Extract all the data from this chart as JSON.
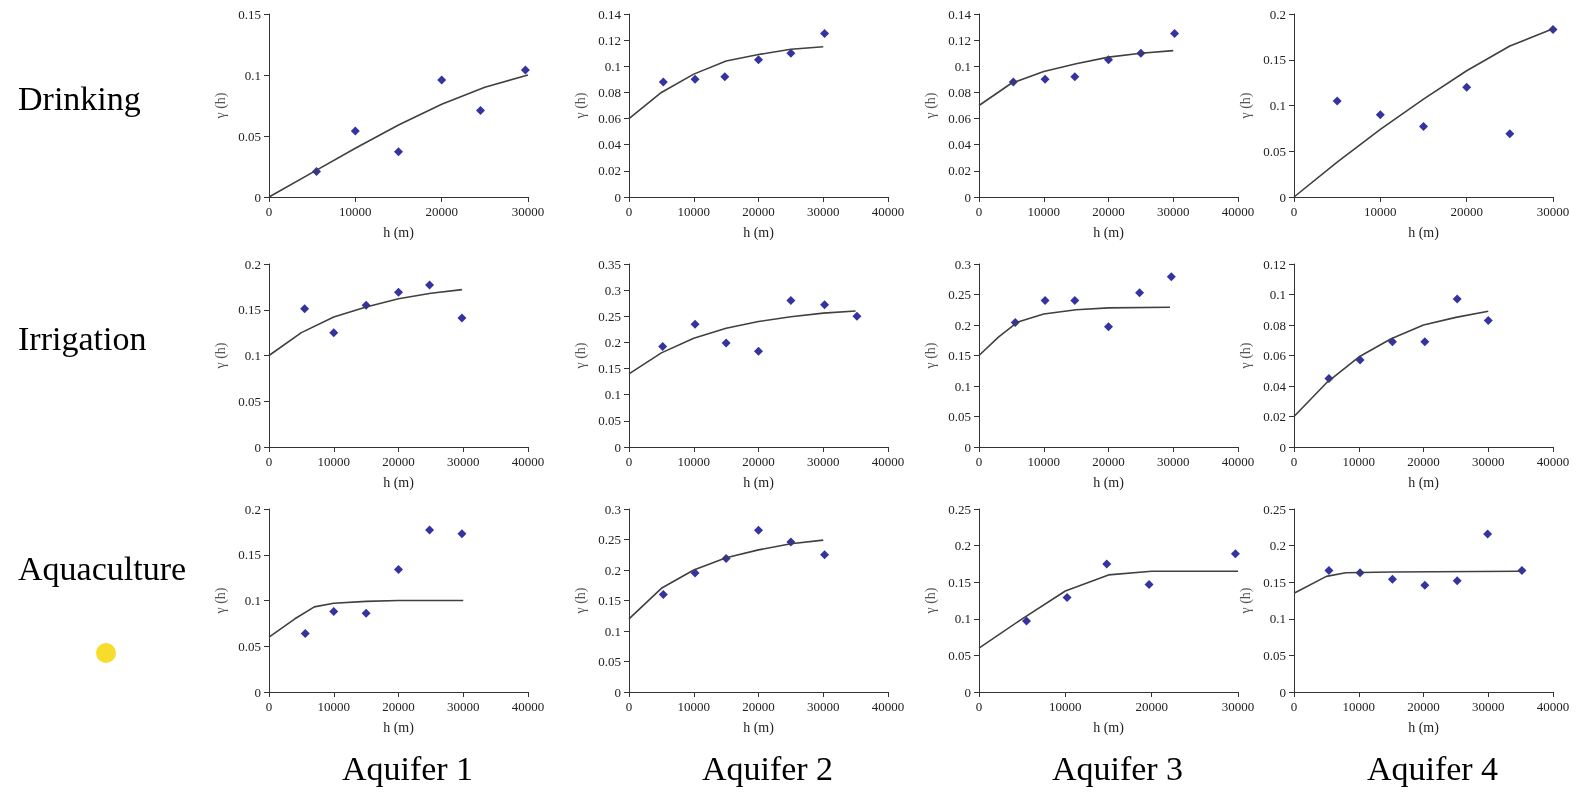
{
  "chart_data": [
    {
      "type": "scatter",
      "annotations": [
        "Drinking"
      ],
      "xlabel": "h (m)",
      "ylabel": "γ (h)",
      "xlim": [
        0,
        30000
      ],
      "xticks": [
        0,
        10000,
        20000,
        30000
      ],
      "ylim": [
        0,
        0.15
      ],
      "yticks": [
        0,
        0.05,
        0.1,
        0.15
      ],
      "series": [
        {
          "type": "scatter",
          "marker": "diamond",
          "color": "#00008b",
          "x": [
            5500,
            10000,
            15000,
            20000,
            24500,
            29700
          ],
          "values": [
            0.021,
            0.054,
            0.037,
            0.096,
            0.071,
            0.104
          ]
        },
        {
          "type": "line",
          "marker": "none",
          "color": "#404040",
          "x": [
            0,
            5000,
            10000,
            15000,
            20000,
            25000,
            30000
          ],
          "values": [
            0,
            0.02,
            0.04,
            0.059,
            0.076,
            0.09,
            0.1
          ]
        }
      ]
    },
    {
      "type": "scatter",
      "xlabel": "h (m)",
      "ylabel": "γ (h)",
      "xlim": [
        0,
        40000
      ],
      "xticks": [
        0,
        10000,
        20000,
        30000,
        40000
      ],
      "ylim": [
        0,
        0.14
      ],
      "yticks": [
        0,
        0.02,
        0.04,
        0.06,
        0.08,
        0.1,
        0.12,
        0.14
      ],
      "series": [
        {
          "type": "scatter",
          "marker": "diamond",
          "color": "#00008b",
          "x": [
            5300,
            10200,
            14800,
            20000,
            25000,
            30200
          ],
          "values": [
            0.088,
            0.09,
            0.092,
            0.105,
            0.11,
            0.125
          ]
        },
        {
          "type": "line",
          "marker": "none",
          "color": "#404040",
          "x": [
            0,
            5000,
            10000,
            15000,
            20000,
            25000,
            30000
          ],
          "values": [
            0.06,
            0.08,
            0.094,
            0.104,
            0.109,
            0.113,
            0.115
          ]
        }
      ]
    },
    {
      "type": "scatter",
      "xlabel": "h (m)",
      "ylabel": "γ (h)",
      "xlim": [
        0,
        40000
      ],
      "xticks": [
        0,
        10000,
        20000,
        30000,
        40000
      ],
      "ylim": [
        0,
        0.14
      ],
      "yticks": [
        0,
        0.02,
        0.04,
        0.06,
        0.08,
        0.1,
        0.12,
        0.14
      ],
      "series": [
        {
          "type": "scatter",
          "marker": "diamond",
          "color": "#00008b",
          "x": [
            5300,
            10200,
            14800,
            20000,
            25000,
            30200
          ],
          "values": [
            0.088,
            0.09,
            0.092,
            0.105,
            0.11,
            0.125
          ]
        },
        {
          "type": "line",
          "marker": "none",
          "color": "#404040",
          "x": [
            0,
            5000,
            10000,
            15000,
            20000,
            25000,
            30000
          ],
          "values": [
            0.07,
            0.087,
            0.096,
            0.102,
            0.107,
            0.11,
            0.112
          ]
        }
      ]
    },
    {
      "type": "scatter",
      "xlabel": "h (m)",
      "ylabel": "γ (h)",
      "xlim": [
        0,
        30000
      ],
      "xticks": [
        0,
        10000,
        20000,
        30000
      ],
      "ylim": [
        0,
        0.2
      ],
      "yticks": [
        0,
        0.05,
        0.1,
        0.15,
        0.2
      ],
      "series": [
        {
          "type": "scatter",
          "marker": "diamond",
          "color": "#00008b",
          "x": [
            5000,
            10000,
            15000,
            20000,
            25000,
            30000
          ],
          "values": [
            0.105,
            0.09,
            0.077,
            0.12,
            0.069,
            0.183
          ]
        },
        {
          "type": "line",
          "marker": "none",
          "color": "#404040",
          "x": [
            0,
            5000,
            10000,
            15000,
            20000,
            25000,
            30000
          ],
          "values": [
            0,
            0.038,
            0.074,
            0.107,
            0.138,
            0.165,
            0.184
          ]
        }
      ]
    },
    {
      "type": "scatter",
      "annotations": [
        "Irrigation"
      ],
      "xlabel": "h (m)",
      "ylabel": "γ (h)",
      "xlim": [
        0,
        40000
      ],
      "xticks": [
        0,
        10000,
        20000,
        30000,
        40000
      ],
      "ylim": [
        0,
        0.2
      ],
      "yticks": [
        0,
        0.05,
        0.1,
        0.15,
        0.2
      ],
      "series": [
        {
          "type": "scatter",
          "marker": "diamond",
          "color": "#00008b",
          "x": [
            5500,
            10000,
            15000,
            20000,
            24800,
            29800
          ],
          "values": [
            0.151,
            0.125,
            0.155,
            0.169,
            0.177,
            0.141
          ]
        },
        {
          "type": "line",
          "marker": "none",
          "color": "#404040",
          "x": [
            0,
            5000,
            10000,
            15000,
            20000,
            25000,
            29800
          ],
          "values": [
            0.1,
            0.125,
            0.142,
            0.153,
            0.162,
            0.168,
            0.172
          ]
        }
      ]
    },
    {
      "type": "scatter",
      "xlabel": "h (m)",
      "ylabel": "γ (h)",
      "xlim": [
        0,
        40000
      ],
      "xticks": [
        0,
        10000,
        20000,
        30000,
        40000
      ],
      "ylim": [
        0,
        0.35
      ],
      "yticks": [
        0,
        0.05,
        0.1,
        0.15,
        0.2,
        0.25,
        0.3,
        0.35
      ],
      "series": [
        {
          "type": "scatter",
          "marker": "diamond",
          "color": "#00008b",
          "x": [
            5200,
            10200,
            15000,
            20000,
            25000,
            30200,
            35200
          ],
          "values": [
            0.192,
            0.235,
            0.199,
            0.183,
            0.28,
            0.272,
            0.25
          ]
        },
        {
          "type": "line",
          "marker": "none",
          "color": "#404040",
          "x": [
            0,
            5000,
            10000,
            15000,
            20000,
            25000,
            30000,
            35000
          ],
          "values": [
            0.14,
            0.18,
            0.208,
            0.227,
            0.24,
            0.249,
            0.256,
            0.26
          ]
        }
      ]
    },
    {
      "type": "scatter",
      "xlabel": "h (m)",
      "ylabel": "γ (h)",
      "xlim": [
        0,
        40000
      ],
      "xticks": [
        0,
        10000,
        20000,
        30000,
        40000
      ],
      "ylim": [
        0,
        0.3
      ],
      "yticks": [
        0,
        0.05,
        0.1,
        0.15,
        0.2,
        0.25,
        0.3
      ],
      "series": [
        {
          "type": "scatter",
          "marker": "diamond",
          "color": "#00008b",
          "x": [
            5600,
            10200,
            14800,
            20000,
            24800,
            29700
          ],
          "values": [
            0.204,
            0.24,
            0.24,
            0.197,
            0.253,
            0.279
          ]
        },
        {
          "type": "line",
          "marker": "none",
          "color": "#404040",
          "x": [
            0,
            3000,
            6000,
            10000,
            15000,
            20000,
            29500
          ],
          "values": [
            0.15,
            0.18,
            0.205,
            0.218,
            0.225,
            0.228,
            0.229
          ]
        }
      ]
    },
    {
      "type": "scatter",
      "xlabel": "h (m)",
      "ylabel": "γ (h)",
      "xlim": [
        0,
        40000
      ],
      "xticks": [
        0,
        10000,
        20000,
        30000,
        40000
      ],
      "ylim": [
        0,
        0.12
      ],
      "yticks": [
        0,
        0.02,
        0.04,
        0.06,
        0.08,
        0.1,
        0.12
      ],
      "series": [
        {
          "type": "scatter",
          "marker": "diamond",
          "color": "#00008b",
          "x": [
            5400,
            10200,
            15200,
            20200,
            25200,
            30000
          ],
          "values": [
            0.045,
            0.057,
            0.069,
            0.069,
            0.097,
            0.083
          ]
        },
        {
          "type": "line",
          "marker": "none",
          "color": "#404040",
          "x": [
            0,
            5000,
            10000,
            15000,
            20000,
            25000,
            30000
          ],
          "values": [
            0.02,
            0.042,
            0.059,
            0.071,
            0.08,
            0.085,
            0.089
          ]
        }
      ]
    },
    {
      "type": "scatter",
      "annotations": [
        "Aquaculture",
        "Aquifer 1"
      ],
      "xlabel": "h (m)",
      "ylabel": "γ (h)",
      "xlim": [
        0,
        40000
      ],
      "xticks": [
        0,
        10000,
        20000,
        30000,
        40000
      ],
      "ylim": [
        0,
        0.2
      ],
      "yticks": [
        0,
        0.05,
        0.1,
        0.15,
        0.2
      ],
      "series": [
        {
          "type": "scatter",
          "marker": "diamond",
          "color": "#00008b",
          "x": [
            5600,
            10000,
            15000,
            20000,
            24800,
            29800
          ],
          "values": [
            0.064,
            0.088,
            0.086,
            0.134,
            0.177,
            0.173
          ]
        },
        {
          "type": "line",
          "marker": "none",
          "color": "#404040",
          "x": [
            0,
            4000,
            7000,
            10000,
            15000,
            20000,
            30000
          ],
          "values": [
            0.06,
            0.08,
            0.093,
            0.097,
            0.099,
            0.1,
            0.1
          ]
        }
      ]
    },
    {
      "type": "scatter",
      "annotations": [
        "Aquifer 2"
      ],
      "xlabel": "h (m)",
      "ylabel": "γ (h)",
      "xlim": [
        0,
        40000
      ],
      "xticks": [
        0,
        10000,
        20000,
        30000,
        40000
      ],
      "ylim": [
        0,
        0.3
      ],
      "yticks": [
        0,
        0.05,
        0.1,
        0.15,
        0.2,
        0.25,
        0.3
      ],
      "series": [
        {
          "type": "scatter",
          "marker": "diamond",
          "color": "#00008b",
          "x": [
            5300,
            10200,
            15000,
            20000,
            25000,
            30200
          ],
          "values": [
            0.16,
            0.195,
            0.219,
            0.265,
            0.246,
            0.225
          ]
        },
        {
          "type": "line",
          "marker": "none",
          "color": "#404040",
          "x": [
            0,
            5000,
            10000,
            15000,
            20000,
            25000,
            30000
          ],
          "values": [
            0.12,
            0.17,
            0.2,
            0.22,
            0.233,
            0.243,
            0.249
          ]
        }
      ]
    },
    {
      "type": "scatter",
      "annotations": [
        "Aquifer 3"
      ],
      "xlabel": "h (m)",
      "ylabel": "γ (h)",
      "xlim": [
        0,
        30000
      ],
      "xticks": [
        0,
        10000,
        20000,
        30000
      ],
      "ylim": [
        0,
        0.25
      ],
      "yticks": [
        0,
        0.05,
        0.1,
        0.15,
        0.2,
        0.25
      ],
      "series": [
        {
          "type": "scatter",
          "marker": "diamond",
          "color": "#00008b",
          "x": [
            5500,
            10200,
            14800,
            19700,
            29700
          ],
          "values": [
            0.097,
            0.129,
            0.175,
            0.147,
            0.189
          ]
        },
        {
          "type": "line",
          "marker": "none",
          "color": "#404040",
          "x": [
            0,
            5000,
            10000,
            15000,
            20000,
            30000
          ],
          "values": [
            0.06,
            0.1,
            0.138,
            0.16,
            0.165,
            0.165
          ]
        }
      ]
    },
    {
      "type": "scatter",
      "annotations": [
        "Aquifer 4"
      ],
      "xlabel": "h (m)",
      "ylabel": "γ (h)",
      "xlim": [
        0,
        40000
      ],
      "xticks": [
        0,
        10000,
        20000,
        30000,
        40000
      ],
      "ylim": [
        0,
        0.25
      ],
      "yticks": [
        0,
        0.05,
        0.1,
        0.15,
        0.2,
        0.25
      ],
      "series": [
        {
          "type": "scatter",
          "marker": "diamond",
          "color": "#00008b",
          "x": [
            5400,
            10200,
            15200,
            20200,
            25200,
            29900,
            35200
          ],
          "values": [
            0.166,
            0.163,
            0.154,
            0.146,
            0.152,
            0.216,
            0.166
          ]
        },
        {
          "type": "line",
          "marker": "none",
          "color": "#404040",
          "x": [
            0,
            5000,
            8000,
            15000,
            35000
          ],
          "values": [
            0.135,
            0.158,
            0.163,
            0.164,
            0.165
          ]
        }
      ]
    }
  ]
}
